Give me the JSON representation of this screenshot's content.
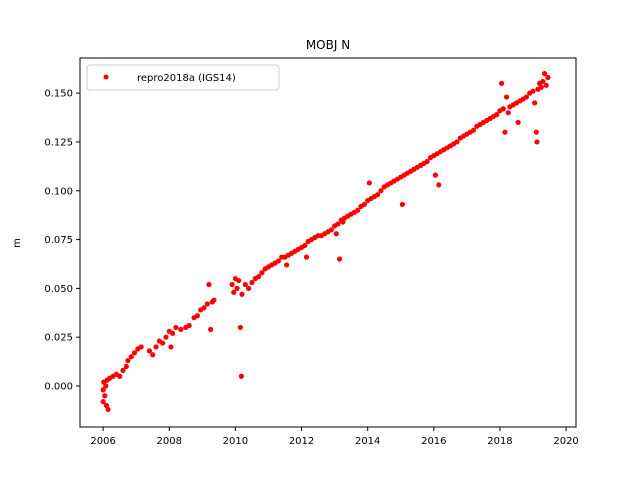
{
  "chart_data": {
    "type": "scatter",
    "title": "MOBJ N",
    "xlabel": "",
    "ylabel": "m",
    "xlim": [
      2005.3,
      2020.3
    ],
    "ylim": [
      -0.021,
      0.168
    ],
    "xticks": [
      2006,
      2008,
      2010,
      2012,
      2014,
      2016,
      2018,
      2020
    ],
    "xtick_labels": [
      "2006",
      "2008",
      "2010",
      "2012",
      "2014",
      "2016",
      "2018",
      "2020"
    ],
    "yticks": [
      0.0,
      0.025,
      0.05,
      0.075,
      0.1,
      0.125,
      0.15
    ],
    "ytick_labels": [
      "0.000",
      "0.025",
      "0.050",
      "0.075",
      "0.100",
      "0.125",
      "0.150"
    ],
    "legend_position": "upper-left",
    "grid": false,
    "series": [
      {
        "name": "repro2018a (IGS14)",
        "color": "#ff0000",
        "marker": "circle",
        "points": [
          [
            2006.0,
            -0.002
          ],
          [
            2006.0,
            -0.008
          ],
          [
            2006.02,
            0.002
          ],
          [
            2006.05,
            -0.005
          ],
          [
            2006.08,
            0.0
          ],
          [
            2006.1,
            -0.01
          ],
          [
            2006.12,
            0.003
          ],
          [
            2006.15,
            -0.012
          ],
          [
            2006.2,
            0.004
          ],
          [
            2006.3,
            0.005
          ],
          [
            2006.4,
            0.006
          ],
          [
            2006.5,
            0.005
          ],
          [
            2006.6,
            0.008
          ],
          [
            2006.7,
            0.01
          ],
          [
            2006.75,
            0.013
          ],
          [
            2006.85,
            0.015
          ],
          [
            2006.95,
            0.017
          ],
          [
            2007.05,
            0.019
          ],
          [
            2007.15,
            0.02
          ],
          [
            2007.4,
            0.018
          ],
          [
            2007.5,
            0.016
          ],
          [
            2007.6,
            0.02
          ],
          [
            2007.7,
            0.023
          ],
          [
            2007.8,
            0.022
          ],
          [
            2007.9,
            0.025
          ],
          [
            2008.0,
            0.028
          ],
          [
            2008.05,
            0.02
          ],
          [
            2008.1,
            0.027
          ],
          [
            2008.2,
            0.03
          ],
          [
            2008.35,
            0.029
          ],
          [
            2008.5,
            0.03
          ],
          [
            2008.6,
            0.031
          ],
          [
            2008.75,
            0.035
          ],
          [
            2008.85,
            0.036
          ],
          [
            2008.95,
            0.039
          ],
          [
            2009.05,
            0.04
          ],
          [
            2009.15,
            0.042
          ],
          [
            2009.2,
            0.052
          ],
          [
            2009.25,
            0.029
          ],
          [
            2009.3,
            0.043
          ],
          [
            2009.35,
            0.044
          ],
          [
            2009.9,
            0.052
          ],
          [
            2009.95,
            0.048
          ],
          [
            2010.0,
            0.055
          ],
          [
            2010.05,
            0.05
          ],
          [
            2010.1,
            0.054
          ],
          [
            2010.15,
            0.03
          ],
          [
            2010.18,
            0.005
          ],
          [
            2010.2,
            0.047
          ],
          [
            2010.3,
            0.052
          ],
          [
            2010.4,
            0.05
          ],
          [
            2010.5,
            0.053
          ],
          [
            2010.6,
            0.055
          ],
          [
            2010.7,
            0.056
          ],
          [
            2010.8,
            0.058
          ],
          [
            2010.9,
            0.06
          ],
          [
            2011.0,
            0.061
          ],
          [
            2011.1,
            0.062
          ],
          [
            2011.2,
            0.063
          ],
          [
            2011.3,
            0.064
          ],
          [
            2011.4,
            0.066
          ],
          [
            2011.5,
            0.066
          ],
          [
            2011.55,
            0.062
          ],
          [
            2011.6,
            0.067
          ],
          [
            2011.7,
            0.068
          ],
          [
            2011.8,
            0.069
          ],
          [
            2011.9,
            0.07
          ],
          [
            2012.0,
            0.071
          ],
          [
            2012.1,
            0.072
          ],
          [
            2012.15,
            0.066
          ],
          [
            2012.2,
            0.074
          ],
          [
            2012.3,
            0.075
          ],
          [
            2012.4,
            0.076
          ],
          [
            2012.5,
            0.077
          ],
          [
            2012.6,
            0.077
          ],
          [
            2012.7,
            0.078
          ],
          [
            2012.8,
            0.079
          ],
          [
            2012.9,
            0.08
          ],
          [
            2013.0,
            0.082
          ],
          [
            2013.05,
            0.078
          ],
          [
            2013.1,
            0.083
          ],
          [
            2013.15,
            0.065
          ],
          [
            2013.2,
            0.085
          ],
          [
            2013.25,
            0.084
          ],
          [
            2013.3,
            0.086
          ],
          [
            2013.4,
            0.087
          ],
          [
            2013.5,
            0.088
          ],
          [
            2013.6,
            0.089
          ],
          [
            2013.7,
            0.09
          ],
          [
            2013.8,
            0.092
          ],
          [
            2013.9,
            0.093
          ],
          [
            2014.0,
            0.095
          ],
          [
            2014.05,
            0.104
          ],
          [
            2014.1,
            0.096
          ],
          [
            2014.2,
            0.097
          ],
          [
            2014.3,
            0.098
          ],
          [
            2014.4,
            0.1
          ],
          [
            2014.5,
            0.102
          ],
          [
            2014.6,
            0.103
          ],
          [
            2014.7,
            0.104
          ],
          [
            2014.8,
            0.105
          ],
          [
            2014.9,
            0.106
          ],
          [
            2015.0,
            0.107
          ],
          [
            2015.05,
            0.093
          ],
          [
            2015.1,
            0.108
          ],
          [
            2015.2,
            0.109
          ],
          [
            2015.3,
            0.11
          ],
          [
            2015.4,
            0.111
          ],
          [
            2015.5,
            0.112
          ],
          [
            2015.6,
            0.113
          ],
          [
            2015.7,
            0.114
          ],
          [
            2015.8,
            0.115
          ],
          [
            2015.9,
            0.117
          ],
          [
            2016.0,
            0.118
          ],
          [
            2016.05,
            0.108
          ],
          [
            2016.1,
            0.119
          ],
          [
            2016.15,
            0.103
          ],
          [
            2016.2,
            0.12
          ],
          [
            2016.3,
            0.121
          ],
          [
            2016.4,
            0.122
          ],
          [
            2016.5,
            0.123
          ],
          [
            2016.6,
            0.124
          ],
          [
            2016.7,
            0.125
          ],
          [
            2016.8,
            0.127
          ],
          [
            2016.9,
            0.128
          ],
          [
            2017.0,
            0.129
          ],
          [
            2017.1,
            0.13
          ],
          [
            2017.2,
            0.131
          ],
          [
            2017.3,
            0.133
          ],
          [
            2017.4,
            0.134
          ],
          [
            2017.5,
            0.135
          ],
          [
            2017.6,
            0.136
          ],
          [
            2017.7,
            0.137
          ],
          [
            2017.8,
            0.138
          ],
          [
            2017.9,
            0.139
          ],
          [
            2018.0,
            0.141
          ],
          [
            2018.05,
            0.155
          ],
          [
            2018.1,
            0.142
          ],
          [
            2018.15,
            0.13
          ],
          [
            2018.2,
            0.148
          ],
          [
            2018.25,
            0.14
          ],
          [
            2018.3,
            0.143
          ],
          [
            2018.4,
            0.144
          ],
          [
            2018.5,
            0.145
          ],
          [
            2018.55,
            0.135
          ],
          [
            2018.6,
            0.146
          ],
          [
            2018.7,
            0.147
          ],
          [
            2018.8,
            0.148
          ],
          [
            2018.9,
            0.15
          ],
          [
            2019.0,
            0.151
          ],
          [
            2019.05,
            0.145
          ],
          [
            2019.1,
            0.13
          ],
          [
            2019.12,
            0.125
          ],
          [
            2019.15,
            0.152
          ],
          [
            2019.2,
            0.155
          ],
          [
            2019.25,
            0.153
          ],
          [
            2019.3,
            0.156
          ],
          [
            2019.35,
            0.16
          ],
          [
            2019.4,
            0.154
          ],
          [
            2019.45,
            0.158
          ]
        ]
      }
    ]
  }
}
